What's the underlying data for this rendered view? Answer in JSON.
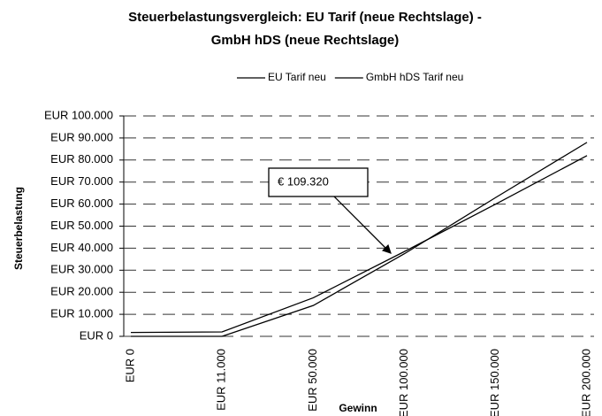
{
  "chart_data": {
    "type": "line",
    "title": "Steuerbelastungsvergleich: EU Tarif (neue Rechtslage) - GmbH hDS (neue Rechtslage)",
    "x_label": "Gewinn",
    "y_label": "Steuerbelastung",
    "categories": [
      "EUR 0",
      "EUR 11.000",
      "EUR 50.000",
      "EUR 100.000",
      "EUR 150.000",
      "EUR 200.000"
    ],
    "series": [
      {
        "name": "EU Tarif neu",
        "color": "#000000",
        "values": [
          0,
          0,
          14000,
          37500,
          63000,
          88000
        ]
      },
      {
        "name": "GmbH hDS Tarif neu",
        "color": "#000000",
        "values": [
          1750,
          2000,
          17500,
          38500,
          60000,
          82000
        ]
      }
    ],
    "annotations": [
      {
        "text": "€ 109.320"
      }
    ],
    "ylim": [
      0,
      100000
    ],
    "yticks": [
      {
        "value": 0,
        "label": "EUR 0"
      },
      {
        "value": 10000,
        "label": "EUR 10.000"
      },
      {
        "value": 20000,
        "label": "EUR 20.000"
      },
      {
        "value": 30000,
        "label": "EUR 30.000"
      },
      {
        "value": 40000,
        "label": "EUR 40.000"
      },
      {
        "value": 50000,
        "label": "EUR 50.000"
      },
      {
        "value": 60000,
        "label": "EUR 60.000"
      },
      {
        "value": 70000,
        "label": "EUR 70.000"
      },
      {
        "value": 80000,
        "label": "EUR 80.000"
      },
      {
        "value": 90000,
        "label": "EUR 90.000"
      },
      {
        "value": 100000,
        "label": "EUR 100.000"
      }
    ],
    "grid": true,
    "legend": "top"
  }
}
